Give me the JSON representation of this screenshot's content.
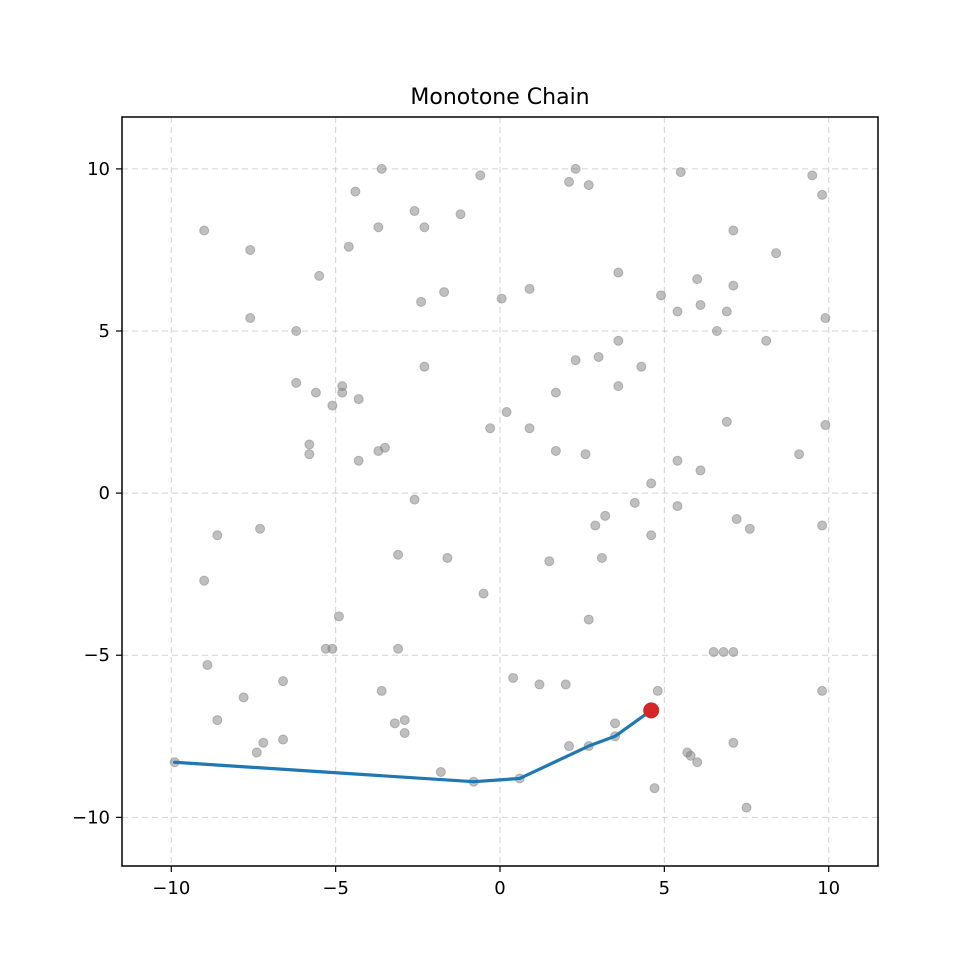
{
  "chart_data": {
    "type": "scatter",
    "title": "Monotone Chain",
    "xlabel": "",
    "ylabel": "",
    "xlim": [
      -11.5,
      11.5
    ],
    "ylim": [
      -11.5,
      11.6
    ],
    "xticks": [
      -10,
      -5,
      0,
      5,
      10
    ],
    "yticks": [
      -10,
      -5,
      0,
      5,
      10
    ],
    "xtick_labels": [
      "−10",
      "−5",
      "0",
      "5",
      "10"
    ],
    "ytick_labels": [
      "−10",
      "−5",
      "0",
      "5",
      "10"
    ],
    "grid": true,
    "colors": {
      "points": "#808080",
      "hull": "#1f77b4",
      "current": "#d62728"
    },
    "points": [
      [
        -9.9,
        -8.3
      ],
      [
        -9.0,
        8.1
      ],
      [
        -9.0,
        -2.7
      ],
      [
        -8.9,
        -5.3
      ],
      [
        -8.6,
        -1.3
      ],
      [
        -8.6,
        -7.0
      ],
      [
        -7.8,
        -6.3
      ],
      [
        -7.6,
        7.5
      ],
      [
        -7.6,
        5.4
      ],
      [
        -7.3,
        -1.1
      ],
      [
        -7.2,
        -7.7
      ],
      [
        -7.4,
        -8.0
      ],
      [
        -6.6,
        -5.8
      ],
      [
        -6.6,
        -7.6
      ],
      [
        -6.2,
        5.0
      ],
      [
        -6.2,
        3.4
      ],
      [
        -5.8,
        1.5
      ],
      [
        -5.8,
        1.2
      ],
      [
        -5.6,
        3.1
      ],
      [
        -5.5,
        6.7
      ],
      [
        -5.1,
        2.7
      ],
      [
        -4.8,
        3.3
      ],
      [
        -4.8,
        3.1
      ],
      [
        -4.9,
        -3.8
      ],
      [
        -4.6,
        7.6
      ],
      [
        -4.4,
        9.3
      ],
      [
        -4.3,
        2.9
      ],
      [
        -4.3,
        1.0
      ],
      [
        -5.3,
        -4.8
      ],
      [
        -5.1,
        -4.8
      ],
      [
        -3.7,
        1.3
      ],
      [
        -3.5,
        1.4
      ],
      [
        -3.6,
        10.0
      ],
      [
        -3.7,
        8.2
      ],
      [
        -3.6,
        -6.1
      ],
      [
        -3.1,
        -1.9
      ],
      [
        -3.1,
        -4.8
      ],
      [
        -3.2,
        -7.1
      ],
      [
        -2.9,
        -7.0
      ],
      [
        -2.9,
        -7.4
      ],
      [
        -2.6,
        8.7
      ],
      [
        -2.6,
        -0.2
      ],
      [
        -2.3,
        8.2
      ],
      [
        -2.4,
        5.9
      ],
      [
        -2.3,
        3.9
      ],
      [
        -1.7,
        6.2
      ],
      [
        -1.6,
        -2.0
      ],
      [
        -1.8,
        -8.6
      ],
      [
        -1.2,
        8.6
      ],
      [
        -0.8,
        -8.9
      ],
      [
        -0.6,
        9.8
      ],
      [
        -0.5,
        -3.1
      ],
      [
        -0.3,
        2.0
      ],
      [
        0.05,
        6.0
      ],
      [
        0.2,
        2.5
      ],
      [
        0.4,
        -5.7
      ],
      [
        0.6,
        -8.8
      ],
      [
        0.9,
        6.3
      ],
      [
        0.9,
        2.0
      ],
      [
        1.2,
        -5.9
      ],
      [
        1.5,
        -2.1
      ],
      [
        1.7,
        3.1
      ],
      [
        1.7,
        1.3
      ],
      [
        2.0,
        -5.9
      ],
      [
        2.1,
        9.6
      ],
      [
        2.1,
        -7.8
      ],
      [
        2.3,
        10.0
      ],
      [
        2.3,
        4.1
      ],
      [
        2.6,
        1.2
      ],
      [
        2.7,
        9.5
      ],
      [
        2.7,
        -3.9
      ],
      [
        2.7,
        -7.8
      ],
      [
        2.9,
        -1.0
      ],
      [
        3.0,
        4.2
      ],
      [
        3.1,
        -2.0
      ],
      [
        3.2,
        -0.7
      ],
      [
        3.5,
        -7.1
      ],
      [
        3.5,
        -7.5
      ],
      [
        3.6,
        6.8
      ],
      [
        3.6,
        4.7
      ],
      [
        3.6,
        3.3
      ],
      [
        4.1,
        -0.3
      ],
      [
        4.3,
        3.9
      ],
      [
        4.6,
        -1.3
      ],
      [
        4.6,
        0.3
      ],
      [
        4.7,
        -9.1
      ],
      [
        4.8,
        -6.1
      ],
      [
        4.9,
        6.1
      ],
      [
        5.4,
        5.6
      ],
      [
        5.4,
        1.0
      ],
      [
        5.4,
        -0.4
      ],
      [
        5.5,
        9.9
      ],
      [
        5.7,
        -8.0
      ],
      [
        5.8,
        -8.1
      ],
      [
        6.0,
        6.6
      ],
      [
        6.1,
        5.8
      ],
      [
        6.1,
        0.7
      ],
      [
        6.0,
        -8.3
      ],
      [
        6.5,
        -4.9
      ],
      [
        6.6,
        5.0
      ],
      [
        6.8,
        -4.9
      ],
      [
        6.9,
        5.6
      ],
      [
        6.9,
        2.2
      ],
      [
        7.1,
        8.1
      ],
      [
        7.1,
        6.4
      ],
      [
        7.1,
        -7.7
      ],
      [
        7.1,
        -4.9
      ],
      [
        7.2,
        -0.8
      ],
      [
        7.5,
        -9.7
      ],
      [
        7.6,
        -1.1
      ],
      [
        8.4,
        7.4
      ],
      [
        8.1,
        4.7
      ],
      [
        9.1,
        1.2
      ],
      [
        9.5,
        9.8
      ],
      [
        9.8,
        9.2
      ],
      [
        9.8,
        -1.0
      ],
      [
        9.8,
        -6.1
      ],
      [
        9.9,
        5.4
      ],
      [
        9.9,
        2.1
      ]
    ],
    "hull": {
      "x": [
        -9.9,
        -0.8,
        0.6,
        2.7,
        3.5,
        4.6
      ],
      "y": [
        -8.3,
        -8.9,
        -8.8,
        -7.8,
        -7.5,
        -6.7
      ]
    },
    "current_point": [
      4.6,
      -6.7
    ]
  }
}
